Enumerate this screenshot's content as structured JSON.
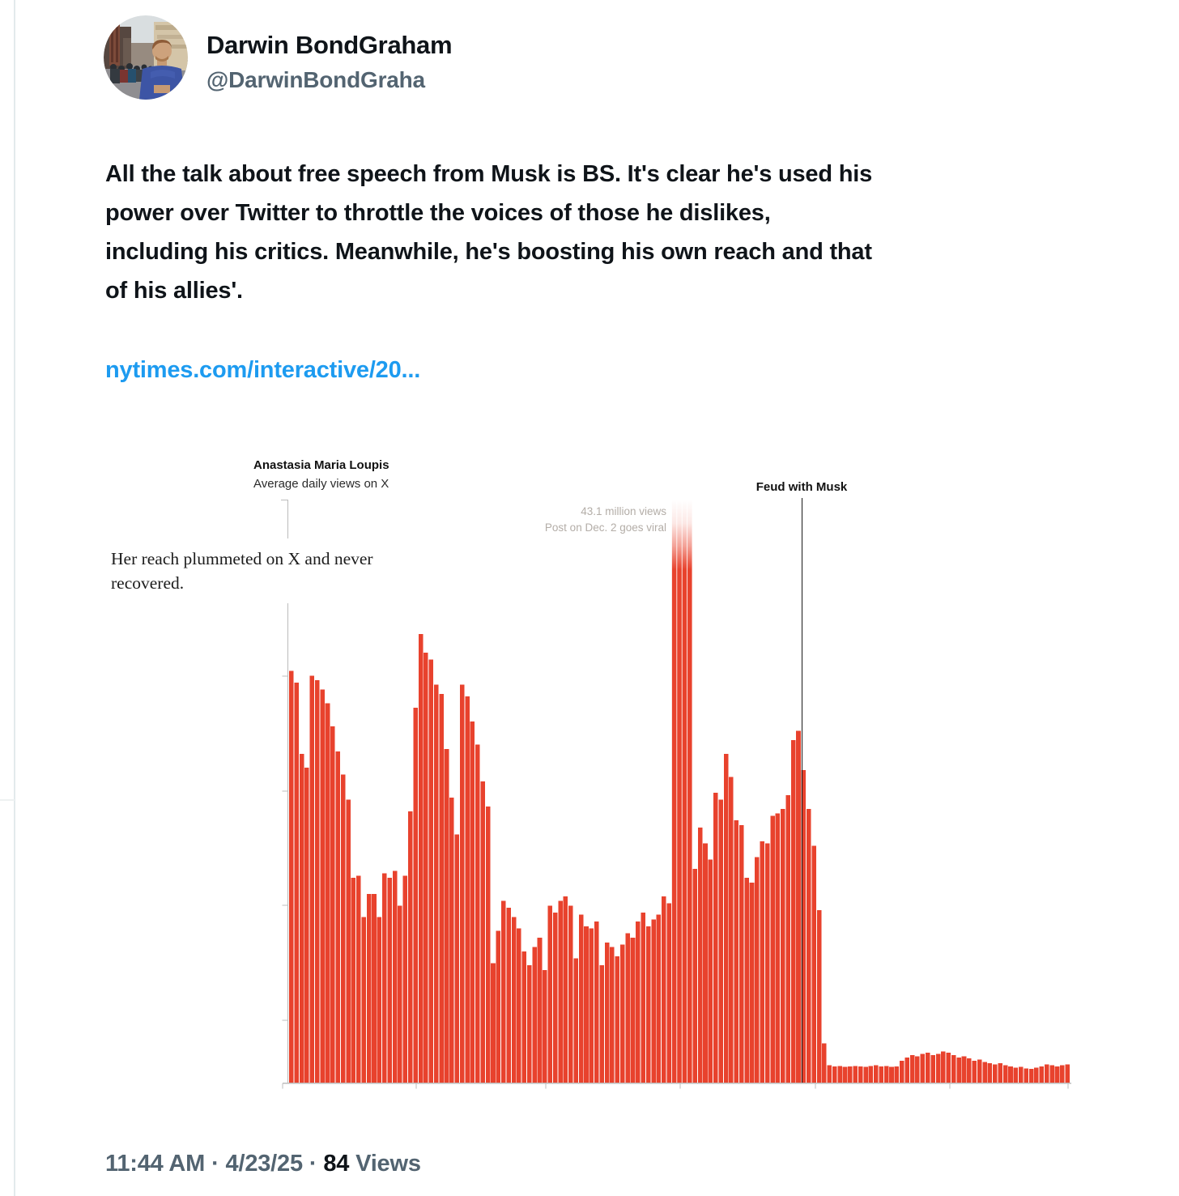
{
  "user": {
    "name": "Darwin BondGraham",
    "handle": "@DarwinBondGraha"
  },
  "tweet": {
    "lines": [
      "All the talk about free speech from Musk is BS. It's clear he's used his",
      "power over Twitter to throttle the voices of those he dislikes,",
      "including his critics. Meanwhile, he's boosting his own reach and that",
      "of his allies'."
    ],
    "link": "nytimes.com/interactive/20..."
  },
  "footer": {
    "time": "11:44 AM",
    "date": "4/23/25",
    "separator": "·",
    "views_count": "84",
    "views_label": "Views"
  },
  "colors": {
    "accent_blue": "#1d9bf0",
    "bar_red": "#e8422d",
    "muted_gray": "#536471"
  },
  "chart_data": {
    "type": "bar",
    "title": "Anastasia Maria Loupis",
    "subtitle": "Average daily views on X",
    "annotation_lines": [
      "Her reach plummeted on X and never",
      "recovered."
    ],
    "viral_annotation_line1": "43.1 million views",
    "viral_annotation_line2": "Post on Dec. 2 goes viral",
    "feud_label": "Feud with Musk",
    "values_unit": "million views per day",
    "ylim": [
      0,
      25.3
    ],
    "grid": false,
    "legend": false,
    "bar_color": "#e8422d",
    "viral_value": 43.1,
    "viral_indices": [
      74,
      75,
      76,
      77
    ],
    "feud_line_after_index": 98,
    "values": [
      17.9,
      17.4,
      14.3,
      13.7,
      17.7,
      17.5,
      17.1,
      16.5,
      15.5,
      14.4,
      13.4,
      12.3,
      8.9,
      9.0,
      7.2,
      8.2,
      8.2,
      7.2,
      9.1,
      8.9,
      9.2,
      7.7,
      9.0,
      11.8,
      16.3,
      19.5,
      18.7,
      18.4,
      17.3,
      16.9,
      14.5,
      12.4,
      10.8,
      17.3,
      16.8,
      15.7,
      14.7,
      13.1,
      12.0,
      5.2,
      6.6,
      7.9,
      7.6,
      7.2,
      6.7,
      5.7,
      5.1,
      5.9,
      6.3,
      4.9,
      7.7,
      7.4,
      7.9,
      8.1,
      7.7,
      5.4,
      7.3,
      6.8,
      6.7,
      7.0,
      5.1,
      6.1,
      5.9,
      5.5,
      6.0,
      6.5,
      6.3,
      7.0,
      7.4,
      6.8,
      7.1,
      7.3,
      8.1,
      7.8,
      43.1,
      43.1,
      43.1,
      43.1,
      9.3,
      11.1,
      10.4,
      9.7,
      12.6,
      12.3,
      14.3,
      13.3,
      11.4,
      11.2,
      8.9,
      8.7,
      9.8,
      10.5,
      10.4,
      11.6,
      11.7,
      11.9,
      12.5,
      14.9,
      15.3,
      13.6,
      11.9,
      10.3,
      7.5,
      1.7,
      0.75,
      0.7,
      0.72,
      0.68,
      0.7,
      0.73,
      0.7,
      0.68,
      0.72,
      0.75,
      0.7,
      0.72,
      0.68,
      0.7,
      0.95,
      1.1,
      1.2,
      1.15,
      1.25,
      1.3,
      1.2,
      1.25,
      1.35,
      1.3,
      1.2,
      1.1,
      1.15,
      1.05,
      0.95,
      1.0,
      0.9,
      0.85,
      0.8,
      0.85,
      0.75,
      0.7,
      0.65,
      0.68,
      0.62,
      0.6,
      0.65,
      0.7,
      0.8,
      0.75,
      0.7,
      0.75,
      0.8
    ]
  }
}
